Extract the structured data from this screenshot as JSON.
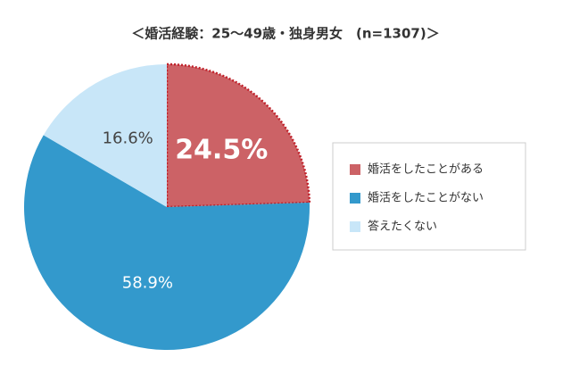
{
  "chart_data": {
    "type": "pie",
    "title": "＜婚活経験：25～49歳・独身男女　(n=1307)＞",
    "categories": [
      "婚活をしたことがある",
      "婚活をしたことがない",
      "答えたくない"
    ],
    "values": [
      24.5,
      58.9,
      16.6
    ],
    "value_labels": [
      "24.5%",
      "58.9%",
      "16.6%"
    ],
    "colors": [
      "#cc6266",
      "#3399cc",
      "#c8e6f8"
    ],
    "legend": "right"
  }
}
